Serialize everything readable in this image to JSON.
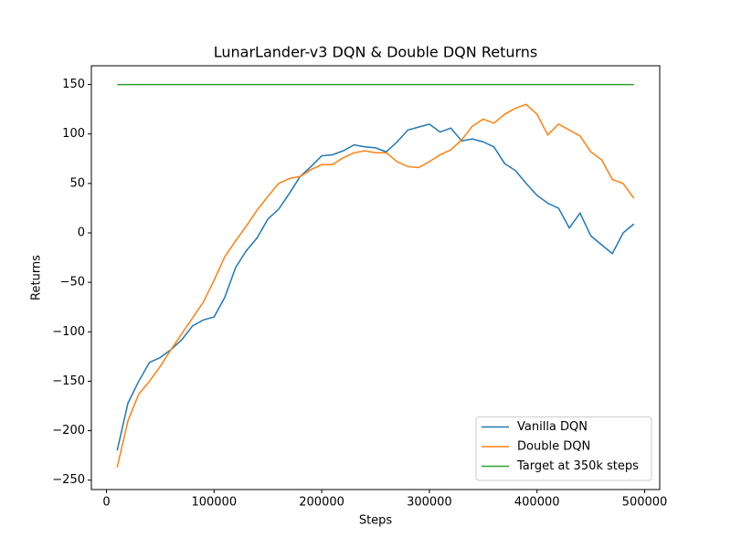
{
  "chart_data": {
    "type": "line",
    "title": "LunarLander-v3 DQN & Double DQN Returns",
    "x_label": "Steps",
    "y_label": "Returns",
    "xlim": [
      -14000,
      514000
    ],
    "ylim": [
      -259.5,
      169
    ],
    "xticks": [
      0,
      100000,
      200000,
      300000,
      400000,
      500000
    ],
    "yticks": [
      {
        "value": -250,
        "label": "−250"
      },
      {
        "value": -200,
        "label": "−200"
      },
      {
        "value": -150,
        "label": "−150"
      },
      {
        "value": -100,
        "label": "−100"
      },
      {
        "value": -50,
        "label": "−50"
      },
      0,
      50,
      100,
      150
    ],
    "legend": "lower right",
    "series": [
      {
        "name": "Vanilla DQN",
        "color": "#1f77b4",
        "x": [
          10000,
          20000,
          30000,
          40000,
          50000,
          60000,
          70000,
          80000,
          90000,
          100000,
          110000,
          120000,
          130000,
          140000,
          150000,
          160000,
          170000,
          180000,
          190000,
          200000,
          210000,
          220000,
          230000,
          240000,
          250000,
          260000,
          270000,
          280000,
          290000,
          300000,
          310000,
          320000,
          330000,
          340000,
          350000,
          360000,
          370000,
          380000,
          390000,
          400000,
          410000,
          420000,
          430000,
          440000,
          450000,
          460000,
          470000,
          480000,
          490000
        ],
        "values": [
          -220,
          -172,
          -150,
          -131,
          -126,
          -118,
          -108,
          -94,
          -88,
          -85,
          -65,
          -35,
          -18,
          -5,
          14,
          24,
          40,
          57,
          67,
          78,
          79,
          83,
          89,
          87,
          86,
          82,
          92,
          104,
          107,
          110,
          102,
          106,
          93,
          95,
          92,
          87,
          70,
          63,
          50,
          38,
          30,
          25,
          5,
          20,
          -3,
          -12,
          -21,
          0,
          9
        ]
      },
      {
        "name": "Double DQN",
        "color": "#ff7f0e",
        "x": [
          10000,
          20000,
          30000,
          40000,
          50000,
          60000,
          70000,
          80000,
          90000,
          100000,
          110000,
          120000,
          130000,
          140000,
          150000,
          160000,
          170000,
          180000,
          190000,
          200000,
          210000,
          220000,
          230000,
          240000,
          250000,
          260000,
          270000,
          280000,
          290000,
          300000,
          310000,
          320000,
          330000,
          340000,
          350000,
          360000,
          370000,
          380000,
          390000,
          400000,
          410000,
          420000,
          430000,
          440000,
          450000,
          460000,
          470000,
          480000,
          490000
        ],
        "values": [
          -237,
          -190,
          -163,
          -150,
          -135,
          -118,
          -102,
          -86,
          -70,
          -48,
          -24,
          -8,
          7,
          23,
          37,
          50,
          55,
          57,
          64,
          69,
          69,
          76,
          81,
          83,
          81,
          81,
          72,
          67,
          66,
          72,
          79,
          84,
          94,
          108,
          115,
          111,
          120,
          126,
          130,
          120,
          99,
          110,
          104,
          98,
          82,
          74,
          54,
          50,
          35
        ]
      },
      {
        "name": "Target at 350k steps",
        "color": "#2ca02c",
        "x": [
          10000,
          490000
        ],
        "values": [
          150,
          150
        ]
      }
    ]
  }
}
